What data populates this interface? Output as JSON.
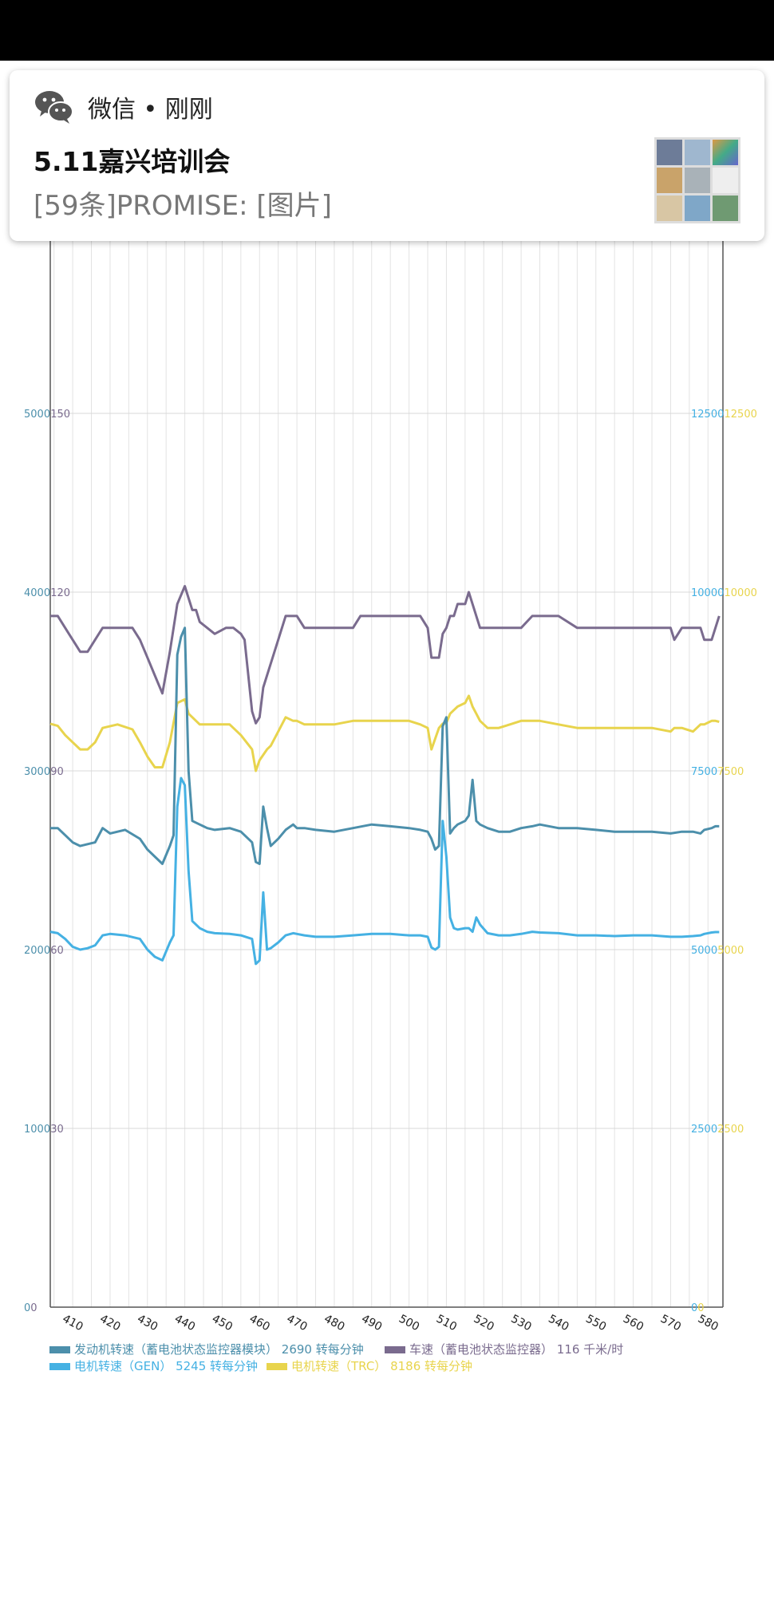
{
  "notification": {
    "app_label": "微信 • 刚刚",
    "group_title": "5.11嘉兴培训会",
    "message": "[59条]PROMISE: [图片]",
    "icon": "wechat-icon",
    "avatar": "group-avatar-grid"
  },
  "colors": {
    "engine": "#4c8fab",
    "speed": "#7a6b8e",
    "gen": "#45b1e3",
    "trc": "#e8d44d",
    "grid": "#e3e3e3"
  },
  "chart_data": {
    "type": "line",
    "x_ticks": [
      "410",
      "420",
      "430",
      "440",
      "450",
      "460",
      "470",
      "480",
      "490",
      "500",
      "510",
      "520",
      "530",
      "540",
      "550",
      "560",
      "570",
      "580"
    ],
    "left_axis": {
      "ticks_a": [
        "0",
        "1000",
        "2000",
        "3000",
        "4000",
        "5000"
      ],
      "ticks_b": [
        "0",
        "30",
        "60",
        "90",
        "120",
        "150"
      ]
    },
    "right_axis": {
      "ticks_a": [
        "0",
        "2500",
        "5000",
        "7500",
        "10000",
        "12500"
      ],
      "ticks_b": [
        "0",
        "2500",
        "5000",
        "7500",
        "10000",
        "12500"
      ]
    },
    "xlim": [
      404,
      584
    ],
    "series": [
      {
        "name": "车速（蓄电池状态监控器）",
        "legend_text": "车速（蓄电池状态监控器） 116 千米/时",
        "axis": "left_b",
        "color_key": "speed",
        "x": [
          404,
          406,
          408,
          409,
          411,
          412,
          414,
          416,
          418,
          422,
          426,
          428,
          430,
          432,
          434,
          436,
          438,
          440,
          441,
          442,
          443,
          444,
          446,
          448,
          451,
          453,
          455,
          456,
          458,
          459,
          460,
          461,
          462,
          463,
          465,
          467,
          469,
          470,
          472,
          475,
          480,
          485,
          487,
          490,
          495,
          500,
          503,
          505,
          506,
          508,
          509,
          510,
          511,
          512,
          513,
          515,
          516,
          517,
          518,
          519,
          521,
          524,
          527,
          530,
          533,
          535,
          540,
          545,
          550,
          555,
          560,
          565,
          570,
          571,
          573,
          576,
          578,
          579,
          581,
          582,
          583
        ],
        "y": [
          116,
          116,
          114,
          113,
          111,
          110,
          110,
          112,
          114,
          114,
          114,
          112,
          109,
          106,
          103,
          110,
          118,
          121,
          119,
          117,
          117,
          115,
          114,
          113,
          114,
          114,
          113,
          112,
          100,
          98,
          99,
          104,
          106,
          108,
          112,
          116,
          116,
          116,
          114,
          114,
          114,
          114,
          116,
          116,
          116,
          116,
          116,
          114,
          109,
          109,
          113,
          114,
          116,
          116,
          118,
          118,
          120,
          118,
          116,
          114,
          114,
          114,
          114,
          114,
          116,
          116,
          116,
          114,
          114,
          114,
          114,
          114,
          114,
          112,
          114,
          114,
          114,
          112,
          112,
          114,
          116
        ]
      },
      {
        "name": "电机转速（TRC）",
        "legend_text": "电机转速（TRC） 8186 转每分钟",
        "axis": "right",
        "color_key": "trc",
        "x": [
          404,
          406,
          408,
          410,
          412,
          414,
          416,
          418,
          422,
          426,
          428,
          430,
          432,
          434,
          436,
          438,
          440,
          441,
          442,
          444,
          446,
          448,
          452,
          455,
          458,
          459,
          460,
          462,
          463,
          465,
          467,
          469,
          470,
          472,
          475,
          480,
          485,
          487,
          490,
          495,
          500,
          503,
          505,
          506,
          508,
          509,
          510,
          511,
          512,
          513,
          515,
          516,
          517,
          518,
          519,
          521,
          524,
          527,
          530,
          533,
          535,
          540,
          545,
          550,
          555,
          560,
          565,
          570,
          571,
          573,
          576,
          578,
          579,
          581,
          582,
          583
        ],
        "y": [
          8160,
          8130,
          8000,
          7900,
          7800,
          7800,
          7900,
          8100,
          8150,
          8080,
          7900,
          7700,
          7550,
          7550,
          7900,
          8450,
          8500,
          8300,
          8250,
          8150,
          8150,
          8150,
          8150,
          8000,
          7800,
          7500,
          7650,
          7800,
          7850,
          8050,
          8250,
          8200,
          8200,
          8150,
          8150,
          8150,
          8200,
          8200,
          8200,
          8200,
          8200,
          8150,
          8100,
          7800,
          8100,
          8160,
          8170,
          8300,
          8350,
          8400,
          8450,
          8550,
          8400,
          8300,
          8200,
          8100,
          8100,
          8150,
          8200,
          8200,
          8200,
          8150,
          8100,
          8100,
          8100,
          8100,
          8100,
          8050,
          8100,
          8100,
          8050,
          8150,
          8150,
          8200,
          8200,
          8186
        ]
      },
      {
        "name": "发动机转速（蓄电池状态监控器模块）",
        "legend_text": "发动机转速（蓄电池状态监控器模块） 2690 转每分钟",
        "axis": "left_a",
        "color_key": "engine",
        "x": [
          404,
          406,
          408,
          410,
          412,
          414,
          416,
          418,
          420,
          424,
          428,
          430,
          432,
          434,
          436,
          437,
          438,
          439,
          440,
          441,
          442,
          444,
          446,
          448,
          452,
          455,
          458,
          459,
          460,
          461,
          462,
          463,
          465,
          467,
          469,
          470,
          472,
          475,
          480,
          485,
          490,
          495,
          500,
          503,
          505,
          506,
          507,
          508,
          509,
          510,
          511,
          512,
          513,
          515,
          516,
          517,
          518,
          519,
          521,
          524,
          527,
          530,
          533,
          535,
          540,
          545,
          550,
          555,
          560,
          565,
          570,
          573,
          576,
          578,
          579,
          581,
          582,
          583
        ],
        "y": [
          2680,
          2680,
          2640,
          2600,
          2580,
          2590,
          2600,
          2680,
          2650,
          2670,
          2620,
          2560,
          2520,
          2480,
          2580,
          2640,
          3650,
          3750,
          3800,
          3000,
          2720,
          2700,
          2680,
          2670,
          2680,
          2660,
          2600,
          2490,
          2480,
          2800,
          2680,
          2580,
          2620,
          2670,
          2700,
          2680,
          2680,
          2670,
          2660,
          2680,
          2700,
          2690,
          2680,
          2670,
          2660,
          2620,
          2560,
          2580,
          3250,
          3300,
          2650,
          2680,
          2700,
          2720,
          2750,
          2950,
          2720,
          2700,
          2680,
          2660,
          2660,
          2680,
          2690,
          2700,
          2680,
          2680,
          2670,
          2660,
          2660,
          2660,
          2650,
          2660,
          2660,
          2650,
          2670,
          2680,
          2690,
          2690
        ]
      },
      {
        "name": "电机转速（GEN）",
        "legend_text": "电机转速（GEN） 5245 转每分钟",
        "axis": "right",
        "color_key": "gen",
        "x": [
          404,
          406,
          408,
          410,
          412,
          414,
          416,
          418,
          420,
          424,
          428,
          430,
          432,
          434,
          436,
          437,
          438,
          439,
          440,
          441,
          442,
          444,
          446,
          448,
          452,
          455,
          458,
          459,
          460,
          461,
          462,
          463,
          465,
          467,
          469,
          470,
          472,
          475,
          480,
          485,
          490,
          495,
          500,
          503,
          505,
          506,
          507,
          508,
          509,
          510,
          511,
          512,
          513,
          515,
          516,
          517,
          518,
          519,
          521,
          524,
          527,
          530,
          533,
          535,
          540,
          545,
          550,
          555,
          560,
          565,
          570,
          573,
          576,
          578,
          579,
          581,
          582,
          583
        ],
        "y": [
          5250,
          5230,
          5150,
          5040,
          5000,
          5020,
          5060,
          5200,
          5220,
          5200,
          5150,
          5000,
          4900,
          4850,
          5100,
          5200,
          7000,
          7400,
          7300,
          6100,
          5400,
          5300,
          5250,
          5230,
          5220,
          5200,
          5150,
          4800,
          4850,
          5800,
          5000,
          5020,
          5100,
          5200,
          5230,
          5220,
          5200,
          5180,
          5180,
          5200,
          5220,
          5220,
          5200,
          5200,
          5180,
          5030,
          5000,
          5040,
          6800,
          6300,
          5450,
          5300,
          5280,
          5300,
          5300,
          5250,
          5450,
          5350,
          5230,
          5200,
          5200,
          5220,
          5250,
          5240,
          5230,
          5200,
          5200,
          5190,
          5200,
          5200,
          5180,
          5180,
          5190,
          5200,
          5220,
          5240,
          5245,
          5245
        ]
      }
    ]
  }
}
